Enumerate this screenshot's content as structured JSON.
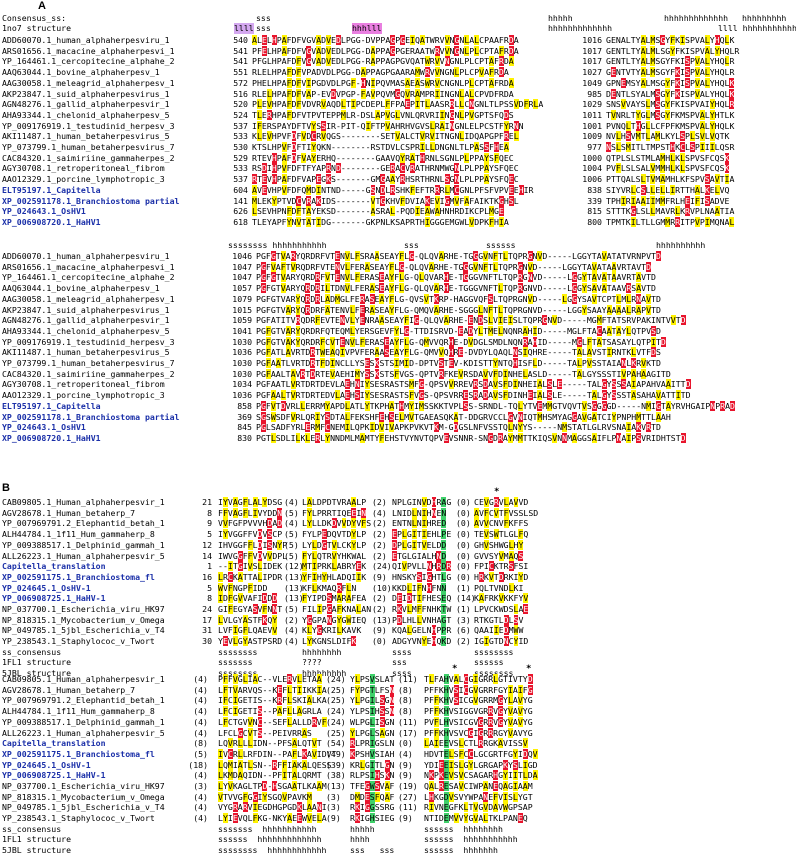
{
  "labels": {
    "panel_a": "A",
    "panel_b": "B"
  },
  "colors": {
    "conserved": "#fff200",
    "identical": "#e8142c",
    "catalytic": "#3fd06a",
    "lineage": "#1a2fa8"
  },
  "panel_a": {
    "block1": {
      "ss_rows": [
        {
          "name": "Consensus_ss:",
          "s1": "sss",
          "s1_x": 256,
          "s2": "hhhhh",
          "s2_x": 548,
          "s3": "hhhhhhhhhhhhh",
          "s3_x": 664,
          "s4": "hhhhhhhhh",
          "s4_x": 742
        },
        {
          "name": "1no7 structure",
          "s1": "llll",
          "s1_x": 234,
          "s1b": "sss",
          "s1b_x": 256,
          "s2": "hhhlll",
          "s2_x": 352,
          "s3": "hhhhhhhhhhhhh",
          "s3_x": 548,
          "s4": "llll hhhhhhhhhhh",
          "s4_x": 718
        }
      ],
      "rows": [
        {
          "name": "ADD60070.1_human_alphaherpesviru_1",
          "blue": false,
          "start": "540",
          "seq": "ALELHPAFDFVGVADVEDLPGG-DVPPAGPGEIQATWRVVNGNLALCPAAFRDA",
          "end": "1016",
          "seq2": "GENALTYALMSGYFKISPVALYHQLK"
        },
        {
          "name": "ARS01656.1_macacine_alphaherpesvi_1",
          "blue": false,
          "start": "541",
          "seq": "PFELHPAFDFVGVADVEDLPGG-DAPPAGPGERAATWRVVNGNLPLCPTAFRDA",
          "end": "1017",
          "seq2": "GENTLTYALMLSGYFKISPVALYHQLR"
        },
        {
          "name": "YP_164461.1_cercopitecine_alphahe_2",
          "blue": false,
          "start": "541",
          "seq": "PFGLHPAFDFVGVADVEDLPGG-RAPPAGPGVQATWRVVNGNLPLCPTAFRDA",
          "end": "1017",
          "seq2": "GENTLTYALMSGYFKISPVALYHQLR"
        },
        {
          "name": "AAQ63044.1_bovine_alphaherpesv_1",
          "blue": false,
          "start": "551",
          "seq": "RLELHPAFDFVPADVDLPGG-DAPPAGPGAARAMWRVVNGNLPLCPVAFRDA",
          "end": "1027",
          "seq2": "GENTVTYALMSGYFKISPVALYHQLR"
        },
        {
          "name": "AAG30058.1_meleagrid_alphaherpesv_1",
          "blue": false,
          "start": "572",
          "seq": "PHELHPAFDFVIPGDVDLPGF-HNIPQVMASAEASWRVCNGNLPLCPTAFRDA",
          "end": "1049",
          "seq2": "GPNEMSYALMSGYFKISPVALYHQLK"
        },
        {
          "name": "AKP23847.1_suid_alphaherpesvirus_1",
          "blue": false,
          "start": "516",
          "seq": "RLELHPAFDFVAP-EVDVPGP-FAVPQVMGQVRAMPRIINGNLALCPVDFRDA",
          "end": "985",
          "seq2": "DENTLSYALMSGYFKISPVALYHQLK"
        },
        {
          "name": "AGN48276.1_gallid_alphaherpesvir_1",
          "blue": false,
          "start": "520",
          "seq": "PLEVHPAFDFVDVRVAQDLTIPCDEPLFFPAEPITLAASRRLLCNGNLTLPSSVDFRLA",
          "end": "1029",
          "seq2": "SNSVVAYSLMSGYFKISPVAIYHQLR"
        },
        {
          "name": "AHA93344.1_chelonid_alphaherpesv_5",
          "blue": false,
          "start": "524",
          "seq": "TLERHPAFDFVTPVTEPPMLR-DSLAPVGLVNLQRVRIINGNLPVGPTSFQDS",
          "end": "1011",
          "seq2": "TVNRLTYGLMSGYFKMSPVALYHTLK"
        },
        {
          "name": "YP_009176919.1_testudinid_herpesv_3",
          "blue": false,
          "start": "537",
          "seq": "IFERSPAYDFTVYSSIR-PIT-QIFTPVAHRHVGVSLRAINGNLELPCSTFYRNN",
          "end": "1001",
          "seq2": "PVNQLTHGLLCFPFKMSPVALYHQLK"
        },
        {
          "name": "AKI11487.1_human_betaherpesvirus_5",
          "blue": false,
          "start": "533",
          "seq": "KLEVHPVFDFVDCRVQGS--------SETVALCTVRVITNGNLIDQAPGPFREL",
          "end": "1009",
          "seq2": "NVLHSVMTLAMLKYLSPLSVLVQTK"
        },
        {
          "name": "YP_073799.1_human_betaherpesvirus_7",
          "blue": false,
          "start": "530",
          "seq": "KTSLHPVFDFTIYQKN--------RSTDVLCSPRILLDNGNLTLPASSFHEA",
          "end": "977",
          "seq2": "NSLSMITLTMPSTHKCLSPIIILQSR"
        },
        {
          "name": "CAC84320.1_saimiriine_gammaherpes_2",
          "blue": false,
          "start": "529",
          "seq": "RTEVHPAFDFVAYERHQ--------GAAVQYRATHRNLSGNLPLPPAYSFQEC",
          "end": "1000",
          "seq2": "QTPLSLSTMLAMHLKLSPVSFCQSK"
        },
        {
          "name": "AGY30708.1_retroperitoneal_fibrom",
          "blue": false,
          "start": "533",
          "seq": "RSDIHPVFDFTFYAPRND--------GERACVRATHRNMWGNLPLPPAYSFQEC",
          "end": "1004",
          "seq2": "PVFLSLSALVMMHLKLSPVSFCQSK"
        },
        {
          "name": "AAO12329.1_porcine_lymphotropic_3",
          "blue": false,
          "start": "537",
          "seq": "RTEVHPAFDFVAPEGKS-------GMGAAYRHSRTHRNLSGNLPLPPAYSFQEC",
          "end": "1006",
          "seq2": "PTTQALSLTVMAMHLKFSPVSAVTIA"
        },
        {
          "name": "ELT95197.1_Capitella",
          "blue": true,
          "start": "604",
          "seq": "AVEVHPVFDFQMDINTND-----GSNDLRSHKFEFTRRRLMCGNLPFSFVPVEEHIR",
          "end": "838",
          "seq2": "SIYVRLCSLLELLIRTTHALKELVQ"
        },
        {
          "name": "XP_002591178.1_Branchiostoma partial",
          "blue": true,
          "start": "141",
          "seq": "MLEKYPTVDCVRAKIDS-------VTGKHVFDVIAKEVIGMVFAFAIKTKGHSL",
          "end": "339",
          "seq2": "TPHIRIAAIIMMFRLHEIFISADVE"
        },
        {
          "name": "YP_024643.1_OsHV1",
          "blue": true,
          "start": "626",
          "seq": "LSEVHPNFDFTAYEKSD-------ASRAL-PQDIEAWAHNHRDIKCPLMGE",
          "end": "815",
          "seq2": "STTTKGLSLLMAVRLKRVPLNAATIA"
        },
        {
          "name": "XP_006908720.1_HaHV1",
          "blue": true,
          "start": "618",
          "seq": "TLEYAPFYNVTATIDG-------GKPNLKSAPRTHIGGGEMGWLVDPKFHIA",
          "end": "800",
          "seq2": "TPMTKILTLLGMMRRITPVPIMQNAL"
        }
      ]
    },
    "block2": {
      "ss_rows": [
        {
          "name": "",
          "s1": "ssssssss hhhhhhhhhhh",
          "s1_x": 228,
          "s2": "sss",
          "s2_x": 404,
          "s3": "ssssss",
          "s3_x": 486,
          "s4": "hhhhhhhhhh",
          "s4_x": 656
        }
      ],
      "rows": [
        {
          "name": "ADD60070.1_human_alphaherpesviru_1",
          "blue": false,
          "start": "1046",
          "seq": "PGFGTVARYQRDRFVTENVLFSRAASEAYFLG-QLQVARHE-TGGGVNFTLTQPRGNVD-----LGGYTAVATATVRNPVTD"
        },
        {
          "name": "ARS01656.1_macacine_alphaherpesvi_1",
          "blue": false,
          "start": "1047",
          "seq": "PGFVAFTVRQDRFVTENVLFERASEAYFLG-QLQVARHE-TGGGVNFTLTQPRGNVD-----LGGYTAVATAAVRTAVTD"
        },
        {
          "name": "YP_164461.1_cercopitecine_alphahe_2",
          "blue": false,
          "start": "1047",
          "seq": "PGFGTVARYQRDRFVTENVLFERASEAYFLG-QLQVARHE-TGGGVNFTLTQPRGNVD-----LGGYTAVATAAVRTAVTD"
        },
        {
          "name": "AAQ63044.1_bovine_alphaherpesv_1",
          "blue": false,
          "start": "1057",
          "seq": "PGFGTVARYQRDRILTDNVLFERASEAYFLG-QLQVARHE-TGGGVNFTLTQPRGNVD-----LGGYSAVATAAVRSAVTD"
        },
        {
          "name": "AAG30058.1_meleagrid_alphaherpesv_1",
          "blue": false,
          "start": "1079",
          "seq": "PGFGTVARYQRDRLADMGLFERASEAYFLG-QVSVTKRP-HAGGVQFSLTQPRGNVD-----LGGYSAVTCPTLMLRNAVTD"
        },
        {
          "name": "AKP23847.1_suid_alphaherpesvirus_1",
          "blue": false,
          "start": "1015",
          "seq": "PGFGTVARYQRDRFATENVLFERASEAYFLG-QMQVARHE-SGGGLNFTLTQPRGNVD-----LGGYSAAYAAAALRAPVTD"
        },
        {
          "name": "AGN48276.1_gallid_alphaherpesvir_1",
          "blue": false,
          "start": "1059",
          "seq": "PGFATITVRQDRFEVTENVLYENRAASEAYFIG-QLQVARHE-ENDSLVIEISLTQPRGNVD-----MGMFTATSRVPAKINTVVTD"
        },
        {
          "name": "AHA93344.1_chelonid_alphaherpesv_5",
          "blue": false,
          "start": "1041",
          "seq": "PGFGTVARYQRDRFQTEQMLYERSGEVFYLG-TTDISRVD-EADYLTMELNQNRAHID-----MGLFTACAATAYLQTPVSD"
        },
        {
          "name": "YP_009176919.1_testudinid_herpesv_3",
          "blue": false,
          "start": "1030",
          "seq": "PGFGTVAKYQRDRFCVTENVLFERASEAYFLG-QMVVQRHE-DVDGLSMDLNQNRAHID-----MGLFTATSASAYLQTPITD"
        },
        {
          "name": "AKI11487.1_human_betaherpesvirus_5",
          "blue": false,
          "start": "1036",
          "seq": "PGFATLAVRTDRTWEAQIVPVFERAASEAYFLG-QMVVQHRE-DVDYLQAQLNSIQHRE-----TALAVSTIRNTKLVTFDS"
        },
        {
          "name": "YP_073799.1_human_betaherpesvirus_7",
          "blue": false,
          "start": "1030",
          "seq": "PGFAATLVRTDRTFDINCLLYSESKSTSIMID-DPTVSTEV-KDISTTYNTQHISFLD-----TALPVSSTAIANLKRVKTD"
        },
        {
          "name": "CAC84320.1_saimiriine_gammaherpes_2",
          "blue": false,
          "start": "1030",
          "seq": "PGFAALTAVRTDRTEVAEHIMYSSKSTSFVGS-QPTVRFKEVRSDAVVFDINHELASLD-----TALGYSSSTIVPAHAAGITD"
        },
        {
          "name": "AGY30708.1_retroperitoneal_fibrom",
          "blue": false,
          "start": "1034",
          "seq": "PGFAATLVRTDRTDEVLAEHNIYSESRASTSMFG-QPSVVRREVRSDAVSFDINHEIALSLE-----TALGYSSSAIAPAHVAAITTD"
        },
        {
          "name": "AAO12329.1_porcine_lymphotropic_3",
          "blue": false,
          "start": "1036",
          "seq": "PGFAALTVRTDRTEDVLAEHSIYSESRASTSFVGS-QPSVRRESRADAVSFDINHEIALSLE-----TALGYSSSTASAHAVATTITD"
        },
        {
          "name": "ELT95197.1_Capitella",
          "blue": true,
          "start": "858",
          "seq": "PGFVTDVRLLERRMYAPDLATLYTKPHATHMYIMSSKKTVPLSS-SRNDL-TQLYTVEMMGTVQVTVSGGGGD-----NMIGTAYRVHGAIPNPRAD"
        },
        {
          "name": "XP_002591178.1_Branchiostoma partial",
          "blue": true,
          "start": "369",
          "seq": "SGSWSDFVRLQRIYSDTALFEKSHFEHSELMVTGAEASQKAT-DDGRVCCLGVNIQTMHSMYAGGAVGATCIYPNPHMTTLAAH"
        },
        {
          "name": "YP_024643.1_OsHV1",
          "blue": true,
          "start": "845",
          "seq": "PGLSADFYRLERMFCNEMILQPKIDVIVAPKPVKVTKM-GDGSLNFVSSTQLNYYS-----NMSTATLGLRVSNAIAKVRTD"
        },
        {
          "name": "XP_006908720.1_HaHV1",
          "blue": true,
          "start": "830",
          "seq": "PGTLSDLILKLERLYNNDMLMAMTYFEHSTVYNVTQPVEVSNNR-SNGDRAYMMTTKIQSVNNMAGGSAIFLPNAIPSVRIDHTSTD"
        }
      ]
    }
  },
  "panel_b": {
    "block1": {
      "star_positions": [
        494
      ],
      "rows": [
        {
          "name": "CAB09805.1_Human_alphaherpesvir_1",
          "blue": false,
          "num": "21",
          "a": "IYVAGFLALYDSG",
          "b": "(4)",
          "c": "LALDPDTVRAALP",
          "d": "(2)",
          "e": "NPLGINVDHRAG",
          "f": "(0)",
          "g": "CEVGRVLAVVD"
        },
        {
          "name": "AGV28678.1_Human_betaherp_7",
          "blue": false,
          "num": "8",
          "a": "FFVAGFLIVYDDN",
          "b": "(5)",
          "c": "FYLPRRTIQEEIN",
          "d": "(4)",
          "e": "LNIDLNIHNEN",
          "f": "(0)",
          "g": "AVFCVTFVSSLSD"
        },
        {
          "name": "YP_007969791.2_Elephantid_betah_1",
          "blue": false,
          "num": "9",
          "a": "VVFGFPVVVHDAD",
          "b": "(4)",
          "c": "LYLLDKDVVDYVFS",
          "d": "(2)",
          "e": "ENTNLNIHRED",
          "f": "(0)",
          "g": "AVVCNVFKFFS"
        },
        {
          "name": "ALH44784.1_1f11_Hum_gammaherp_8",
          "blue": false,
          "num": "5",
          "a": "IYVGGFFVDVSCP",
          "b": "(5)",
          "c": "FYLPEDQVTDYLP",
          "d": "(2)",
          "e": "EPLGITIEHLPE",
          "f": "(0)",
          "g": "TEVSWTLGLFQ"
        },
        {
          "name": "YP_009388517.1_Delphinid_gammah_1",
          "blue": false,
          "num": "12",
          "a": "IHVGGFFLDISNYP",
          "b": "(5)",
          "c": "LYLDGTVLCKYLP",
          "d": "(2)",
          "e": "DPLGITVELDD",
          "f": "(0)",
          "g": "GHVSHWGLHY"
        },
        {
          "name": "ALL26223.1_Human_alphaherpesvir_5",
          "blue": false,
          "num": "14",
          "a": "IWVGGFFVDVVDPL",
          "b": "(5)",
          "c": "FYLQTRVYHKWAL",
          "d": "(2)",
          "e": "ETGLGIALHND",
          "f": "(0)",
          "g": "GVVSYVMAQS"
        },
        {
          "name": "Capitella_translation",
          "blue": true,
          "num": "1",
          "a": "--ITGIVSLIDEK",
          "b": "(12)",
          "c": "MTIPRKLABRYEK",
          "d": "(24)",
          "e": "QIVPVLLNHRDR",
          "f": "(0)",
          "g": "FPICKTRSFSI"
        },
        {
          "name": "XP_002591175.1_Branchiostoma_fl",
          "blue": true,
          "num": "16",
          "a": "LRCKATTALIPDR",
          "b": "(13)",
          "c": "YFIHYHLADQIIK",
          "d": "(9)",
          "e": "HNSKYSIGHTLG",
          "f": "(0)",
          "g": "HRKVTDRKIYD"
        },
        {
          "name": "YP_024645.1_OsHV-1",
          "blue": true,
          "num": "5",
          "a": "WVFNGPFIDD",
          "b": "(13)",
          "c": "KFLKMAQRFLN",
          "d": "(10)",
          "e": "KKDLIFNHFNN",
          "f": "(1)",
          "g": "PQLTVNDLKI"
        },
        {
          "name": "YP_006908725.1_HaHV-1",
          "blue": true,
          "num": "8",
          "a": "IDFGVVAFIDDD",
          "b": "(13)",
          "c": "FYIPDSMARAFEA",
          "d": "(2)",
          "e": "DEIDTIFHESEQ",
          "f": "(14)",
          "g": "KAFRKVKKFYV"
        },
        {
          "name": "NP_037700.1_Escherichia_viru_HK97",
          "blue": false,
          "num": "24",
          "a": "GIFEGYASVFNNT",
          "b": "(5)",
          "c": "FILIPGAFKNALAN",
          "d": "(2)",
          "e": "RKVLMFFNHKTW",
          "f": "(1)",
          "g": "LPVCKWDSLAE"
        },
        {
          "name": "NP_818315.1_Mycobacterium_v_Omega",
          "blue": false,
          "num": "17",
          "a": "LVLGYASTFKQY",
          "b": "(2)",
          "c": "YGGPANGYGWIEQ",
          "d": "(13)",
          "e": "PDLHLLVNHAGT",
          "f": "(3)",
          "g": "RTKGTLDLSV"
        },
        {
          "name": "NP_049785.1_5jbl_Escherichia_v_T4",
          "blue": false,
          "num": "31",
          "a": "LVFIGFLQAEVV",
          "b": "(4)",
          "c": "KLYGKRILKAVK",
          "d": "(9)",
          "e": "KQALGELNHPPR",
          "f": "(6)",
          "g": "QAAIIEDMWW"
        },
        {
          "name": "YP_238543.1_Staphylococ_v_Twort",
          "blue": false,
          "num": "30",
          "a": "YEVLGYASTPSRD",
          "b": "(4)",
          "c": "LYKGNSLDIFK",
          "d": "(0)",
          "e": "ADGYVNYEHQKD",
          "f": "(2)",
          "g": "IGIGTDNCYID"
        }
      ],
      "ss_rows": [
        {
          "name": "ss_consensus",
          "a": "ssssssss",
          "c": "hhhhhhhh",
          "e": "ssss",
          "g": "ssssssss"
        },
        {
          "name": "1FL1 structure",
          "a": "sssssss",
          "c": "????",
          "e": "sss",
          "g": "ssssss"
        },
        {
          "name": "5JBL structure",
          "a": "ssssssss",
          "c": "hhhhhhhhh",
          "e": "ssss",
          "g": "ssssssss"
        }
      ]
    },
    "block2": {
      "star_positions": [
        452,
        526
      ],
      "rows": [
        {
          "name": "CAB09805.1_Human_alphaherpesvir_1",
          "blue": false,
          "num": "(4)",
          "a": "PFFVGLIAC--VLERVLETAA",
          "b": "(24)",
          "c": "YLPSVSLAT",
          "d": "(11)",
          "e": "TLFAHVALCGIGRRLGTIVTYD"
        },
        {
          "name": "AGV28678.1_Human_betaherp_7",
          "blue": false,
          "num": "(4)",
          "a": "LFTVARVQS--KEFLTIIKKIA",
          "b": "(25)",
          "c": "FYPGTLFSN",
          "d": "(8)",
          "e": "PFFKHVSICGVGRRFGYIAIFG"
        },
        {
          "name": "YP_007969791.2_Elephantid_betah_1",
          "blue": false,
          "num": "(4)",
          "a": "IFCIGETIS--KRFLSKIALKA",
          "b": "(25)",
          "c": "YLPGILSGN",
          "d": "(8)",
          "e": "PFFKHVSICGVGRRMGYLAVYG"
        },
        {
          "name": "ALH44784.1_1f11_Hum_gammaherp_8",
          "blue": false,
          "num": "(4)",
          "a": "LFCIGETIS--PAFLLAGRLA",
          "b": "(24)",
          "c": "YLPSIHSSN",
          "d": "(8)",
          "e": "PFFKHVSIGGVGRRVGYVAVYG"
        },
        {
          "name": "YP_009388517.1_Delphinid_gammah_1",
          "blue": false,
          "num": "(4)",
          "a": "LFCTGVVNC--SEFLALLDRVF",
          "b": "(24)",
          "c": "WLPGLISGN",
          "d": "(11)",
          "e": "PVFLHVSICGVGRRVGYVAVYG"
        },
        {
          "name": "ALL26223.1_Human_alphaherpesvir_5",
          "blue": false,
          "num": "(4)",
          "a": "LFCLGCVTS--PEIVRRAS",
          "b": "(25)",
          "c": "YLPGLSAGN",
          "d": "(17)",
          "e": "PFFKHVSVCGIGRRRGYVAVYG"
        },
        {
          "name": "Capitella_translation",
          "blue": true,
          "num": "(8)",
          "a": "LQVRLLLIDN--PFSALQTVT",
          "b": "(54)",
          "c": "RLPRIGSLN",
          "d": "(0)",
          "e": "LAIEEVSLCTLRRGKAVISSV"
        },
        {
          "name": "XP_002591175.1_Branchiostoma_fl",
          "blue": true,
          "num": "(5)",
          "a": "IVCRLLRFDIN--PAFLKAVIDVT",
          "b": "(49)",
          "c": "KPSHVSIAH",
          "d": "(4)",
          "e": "HDVTELSFCCLGCGRTFGYIDQV"
        },
        {
          "name": "YP_024645.1_OsHV-1",
          "blue": true,
          "num": "(18)",
          "a": "LQMIATLSN--RFFIAKALQESS",
          "b": "(39)",
          "c": "KRLGITLGN",
          "d": "(9)",
          "e": "YDIEEISLGYLGRGAPKYSLIGD"
        },
        {
          "name": "YP_006908725.1_HaHV-1",
          "blue": true,
          "num": "(4)",
          "a": "LKMDAQIDN--PFITALQRMT",
          "b": "(38)",
          "c": "RLPSIHSKN",
          "d": "(9)",
          "e": "NKPKEVSVCSAGARHGYIITLDA"
        },
        {
          "name": "NP_037700.1_Escherichia_viru_HK97",
          "blue": false,
          "num": "(3)",
          "a": "LYVKAGLTPD-HSGAATLKAAM",
          "b": "(13)",
          "c": "TFEGWSVAF",
          "d": "(19)",
          "e": "QALRESAVCIWPANEQAGIAAM"
        },
        {
          "name": "NP_818315.1_Mycobacterium_v_Omega",
          "blue": false,
          "num": "(4)",
          "a": "VTVVGFGGIYSGQVPAVKM",
          "b": "(3)",
          "c": "DMDESFQAF",
          "d": "(27)",
          "e": "LHKGDVSVYWPANEFVISLYGT"
        },
        {
          "name": "NP_049785.1_5jbl_Escherichia_v_T4",
          "blue": false,
          "num": "(4)",
          "a": "VYGRARVIEGDHGPGDKLAANI",
          "b": "(3)",
          "c": "RKIGGSSRG",
          "d": "(11)",
          "e": "RIVNEGFKLTVGVDAVWGPSAP"
        },
        {
          "name": "YP_238543.1_Staphylococ_v_Twort",
          "blue": false,
          "num": "(4)",
          "a": "LYIEVQLFKG-NKYAEEWVELA",
          "b": "(9)",
          "c": "RKIGHSIEG",
          "d": "(9)",
          "e": "NTIDEMVVYGVALTKLPANEQ"
        }
      ],
      "ss_rows": [
        {
          "name": "ss_consensus",
          "a": "sssssss  hhhhhhhhhhh",
          "c": "hhhhh",
          "e": "ssssss  hhhhhhhh"
        },
        {
          "name": "1FL1 structure",
          "a": "ssssss  hhhhhhhhhhhhh",
          "c": "hhhh",
          "e": "ssssss  hhhhhhhhhhh"
        },
        {
          "name": "5JBL structure",
          "a": "ssssssss  hhhhhhhhhhhh",
          "c": "sss   sss",
          "e": "ssssss  hhhhhhh"
        }
      ]
    }
  }
}
